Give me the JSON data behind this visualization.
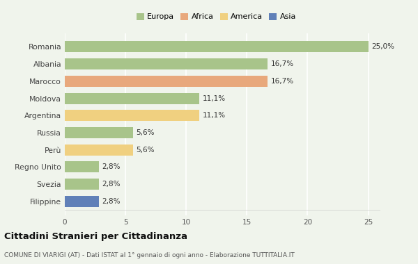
{
  "countries": [
    "Romania",
    "Albania",
    "Marocco",
    "Moldova",
    "Argentina",
    "Russia",
    "Perù",
    "Regno Unito",
    "Svezia",
    "Filippine"
  ],
  "values": [
    25.0,
    16.7,
    16.7,
    11.1,
    11.1,
    5.6,
    5.6,
    2.8,
    2.8,
    2.8
  ],
  "labels": [
    "25,0%",
    "16,7%",
    "16,7%",
    "11,1%",
    "11,1%",
    "5,6%",
    "5,6%",
    "2,8%",
    "2,8%",
    "2,8%"
  ],
  "colors": [
    "#a8c48a",
    "#a8c48a",
    "#e8a87c",
    "#a8c48a",
    "#f0d080",
    "#a8c48a",
    "#f0d080",
    "#a8c48a",
    "#a8c48a",
    "#6080b8"
  ],
  "legend_labels": [
    "Europa",
    "Africa",
    "America",
    "Asia"
  ],
  "legend_colors": [
    "#a8c48a",
    "#e8a87c",
    "#f0d080",
    "#6080b8"
  ],
  "title": "Cittadini Stranieri per Cittadinanza",
  "subtitle": "COMUNE DI VIARIGI (AT) - Dati ISTAT al 1° gennaio di ogni anno - Elaborazione TUTTITALIA.IT",
  "xlim": [
    0,
    26
  ],
  "xticks": [
    0,
    5,
    10,
    15,
    20,
    25
  ],
  "background_color": "#f0f4ec",
  "grid_color": "#ffffff",
  "bar_height": 0.65
}
